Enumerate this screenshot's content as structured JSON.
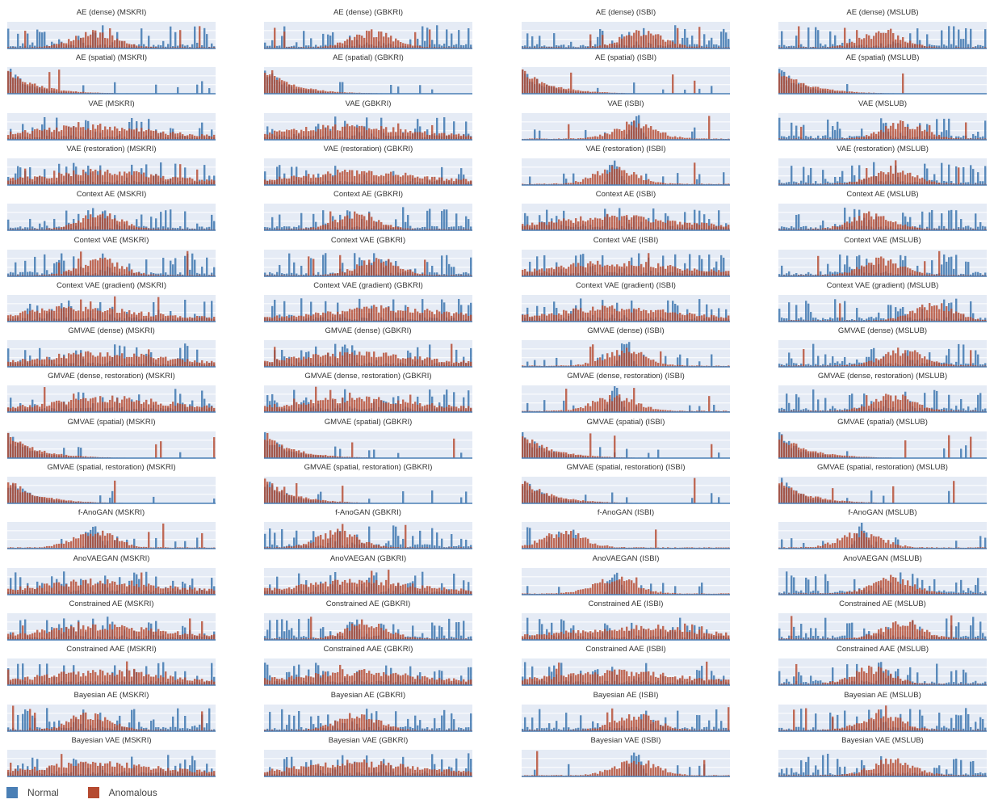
{
  "colors": {
    "normal": "#4a7fb5",
    "anomalous": "#b54a30",
    "plot_bg": "#e5ebf5",
    "gridline": "#ffffff"
  },
  "legend": {
    "items": [
      {
        "label": "Normal",
        "color": "#4a7fb5"
      },
      {
        "label": "Anomalous",
        "color": "#b54a30"
      }
    ],
    "placement": "bottom-left"
  },
  "chart_data": {
    "type": "area",
    "layout": "small-multiples grid, 17 rows x 4 columns",
    "datasets": [
      "MSKRI",
      "GBKRI",
      "ISBI",
      "MSLUB"
    ],
    "models": [
      "AE (dense)",
      "AE (spatial)",
      "VAE",
      "VAE (restoration)",
      "Context AE",
      "Context VAE",
      "Context VAE (gradient)",
      "GMVAE (dense)",
      "GMVAE (dense, restoration)",
      "GMVAE (spatial)",
      "GMVAE (spatial, restoration)",
      "f-AnoGAN",
      "AnoVAEGAN",
      "Constrained AE",
      "Constrained AAE",
      "Bayesian AE",
      "Bayesian VAE"
    ],
    "series": [
      {
        "name": "Normal"
      },
      {
        "name": "Anomalous"
      }
    ],
    "grid": true,
    "axes_labels_visible": false,
    "panels": [
      {
        "title": "AE (dense) (MSKRI)",
        "shape": "spread",
        "anomalous_center": 0.42
      },
      {
        "title": "AE (dense) (GBKRI)",
        "shape": "spread",
        "anomalous_center": 0.52
      },
      {
        "title": "AE (dense) (ISBI)",
        "shape": "spread",
        "anomalous_center": 0.58
      },
      {
        "title": "AE (dense) (MSLUB)",
        "shape": "spread",
        "anomalous_center": 0.5
      },
      {
        "title": "AE (spatial) (MSKRI)",
        "shape": "decay",
        "anomalous_center": 0.1
      },
      {
        "title": "AE (spatial) (GBKRI)",
        "shape": "decay",
        "anomalous_center": 0.1
      },
      {
        "title": "AE (spatial) (ISBI)",
        "shape": "decay",
        "anomalous_center": 0.1
      },
      {
        "title": "AE (spatial) (MSLUB)",
        "shape": "decay",
        "anomalous_center": 0.1
      },
      {
        "title": "VAE (MSKRI)",
        "shape": "flat",
        "anomalous_center": 0.4
      },
      {
        "title": "VAE (GBKRI)",
        "shape": "flat",
        "anomalous_center": 0.4
      },
      {
        "title": "VAE (ISBI)",
        "shape": "peak",
        "anomalous_center": 0.55
      },
      {
        "title": "VAE (MSLUB)",
        "shape": "spread",
        "anomalous_center": 0.6
      },
      {
        "title": "VAE (restoration) (MSKRI)",
        "shape": "flat",
        "anomalous_center": 0.45
      },
      {
        "title": "VAE (restoration) (GBKRI)",
        "shape": "flat",
        "anomalous_center": 0.45
      },
      {
        "title": "VAE (restoration) (ISBI)",
        "shape": "peak",
        "anomalous_center": 0.45
      },
      {
        "title": "VAE (restoration) (MSLUB)",
        "shape": "spread",
        "anomalous_center": 0.55
      },
      {
        "title": "Context AE (MSKRI)",
        "shape": "spread",
        "anomalous_center": 0.45
      },
      {
        "title": "Context AE (GBKRI)",
        "shape": "spread",
        "anomalous_center": 0.45
      },
      {
        "title": "Context AE (ISBI)",
        "shape": "flat",
        "anomalous_center": 0.45
      },
      {
        "title": "Context AE (MSLUB)",
        "shape": "spread",
        "anomalous_center": 0.45
      },
      {
        "title": "Context VAE (MSKRI)",
        "shape": "spread",
        "anomalous_center": 0.45
      },
      {
        "title": "Context VAE (GBKRI)",
        "shape": "spread",
        "anomalous_center": 0.55
      },
      {
        "title": "Context VAE (ISBI)",
        "shape": "flat",
        "anomalous_center": 0.45
      },
      {
        "title": "Context VAE (MSLUB)",
        "shape": "spread",
        "anomalous_center": 0.5
      },
      {
        "title": "Context VAE (gradient) (MSKRI)",
        "shape": "flat",
        "anomalous_center": 0.35
      },
      {
        "title": "Context VAE (gradient) (GBKRI)",
        "shape": "flat",
        "anomalous_center": 0.6
      },
      {
        "title": "Context VAE (gradient) (ISBI)",
        "shape": "flat",
        "anomalous_center": 0.45
      },
      {
        "title": "Context VAE (gradient) (MSLUB)",
        "shape": "spread",
        "anomalous_center": 0.75
      },
      {
        "title": "GMVAE (dense) (MSKRI)",
        "shape": "flat",
        "anomalous_center": 0.45
      },
      {
        "title": "GMVAE (dense) (GBKRI)",
        "shape": "flat",
        "anomalous_center": 0.45
      },
      {
        "title": "GMVAE (dense) (ISBI)",
        "shape": "peak",
        "anomalous_center": 0.5
      },
      {
        "title": "GMVAE (dense) (MSLUB)",
        "shape": "spread",
        "anomalous_center": 0.6
      },
      {
        "title": "GMVAE (dense, restoration) (MSKRI)",
        "shape": "flat",
        "anomalous_center": 0.5
      },
      {
        "title": "GMVAE (dense, restoration) (GBKRI)",
        "shape": "flat",
        "anomalous_center": 0.45
      },
      {
        "title": "GMVAE (dense, restoration) (ISBI)",
        "shape": "peak",
        "anomalous_center": 0.45
      },
      {
        "title": "GMVAE (dense, restoration) (MSLUB)",
        "shape": "spread",
        "anomalous_center": 0.55
      },
      {
        "title": "GMVAE (spatial) (MSKRI)",
        "shape": "decay",
        "anomalous_center": 0.1
      },
      {
        "title": "GMVAE (spatial) (GBKRI)",
        "shape": "decay",
        "anomalous_center": 0.1
      },
      {
        "title": "GMVAE (spatial) (ISBI)",
        "shape": "decay",
        "anomalous_center": 0.1
      },
      {
        "title": "GMVAE (spatial) (MSLUB)",
        "shape": "decay",
        "anomalous_center": 0.1
      },
      {
        "title": "GMVAE (spatial, restoration) (MSKRI)",
        "shape": "decay",
        "anomalous_center": 0.15
      },
      {
        "title": "GMVAE (spatial, restoration) (GBKRI)",
        "shape": "decay",
        "anomalous_center": 0.15
      },
      {
        "title": "GMVAE (spatial, restoration) (ISBI)",
        "shape": "decay",
        "anomalous_center": 0.15
      },
      {
        "title": "GMVAE (spatial, restoration) (MSLUB)",
        "shape": "decay",
        "anomalous_center": 0.15
      },
      {
        "title": "f-AnoGAN (MSKRI)",
        "shape": "peak",
        "anomalous_center": 0.42
      },
      {
        "title": "f-AnoGAN (GBKRI)",
        "shape": "spread",
        "anomalous_center": 0.35
      },
      {
        "title": "f-AnoGAN (ISBI)",
        "shape": "sparse",
        "anomalous_center": 0.2
      },
      {
        "title": "f-AnoGAN (MSLUB)",
        "shape": "peak",
        "anomalous_center": 0.4
      },
      {
        "title": "AnoVAEGAN (MSKRI)",
        "shape": "flat",
        "anomalous_center": 0.45
      },
      {
        "title": "AnoVAEGAN (GBKRI)",
        "shape": "flat",
        "anomalous_center": 0.45
      },
      {
        "title": "AnoVAEGAN (ISBI)",
        "shape": "peak",
        "anomalous_center": 0.45
      },
      {
        "title": "AnoVAEGAN (MSLUB)",
        "shape": "spread",
        "anomalous_center": 0.55
      },
      {
        "title": "Constrained AE (MSKRI)",
        "shape": "flat",
        "anomalous_center": 0.45
      },
      {
        "title": "Constrained AE (GBKRI)",
        "shape": "spread",
        "anomalous_center": 0.5
      },
      {
        "title": "Constrained AE (ISBI)",
        "shape": "flat",
        "anomalous_center": 0.55
      },
      {
        "title": "Constrained AE (MSLUB)",
        "shape": "spread",
        "anomalous_center": 0.6
      },
      {
        "title": "Constrained AAE (MSKRI)",
        "shape": "flat",
        "anomalous_center": 0.45
      },
      {
        "title": "Constrained AAE (GBKRI)",
        "shape": "flat",
        "anomalous_center": 0.45
      },
      {
        "title": "Constrained AAE (ISBI)",
        "shape": "flat",
        "anomalous_center": 0.45
      },
      {
        "title": "Constrained AAE (MSLUB)",
        "shape": "spread",
        "anomalous_center": 0.45
      },
      {
        "title": "Bayesian AE (MSKRI)",
        "shape": "spread",
        "anomalous_center": 0.4
      },
      {
        "title": "Bayesian AE (GBKRI)",
        "shape": "spread",
        "anomalous_center": 0.45
      },
      {
        "title": "Bayesian AE (ISBI)",
        "shape": "spread",
        "anomalous_center": 0.55
      },
      {
        "title": "Bayesian AE (MSLUB)",
        "shape": "spread",
        "anomalous_center": 0.5
      },
      {
        "title": "Bayesian VAE (MSKRI)",
        "shape": "flat",
        "anomalous_center": 0.45
      },
      {
        "title": "Bayesian VAE (GBKRI)",
        "shape": "flat",
        "anomalous_center": 0.45
      },
      {
        "title": "Bayesian VAE (ISBI)",
        "shape": "peak",
        "anomalous_center": 0.55
      },
      {
        "title": "Bayesian VAE (MSLUB)",
        "shape": "spread",
        "anomalous_center": 0.55
      }
    ]
  }
}
